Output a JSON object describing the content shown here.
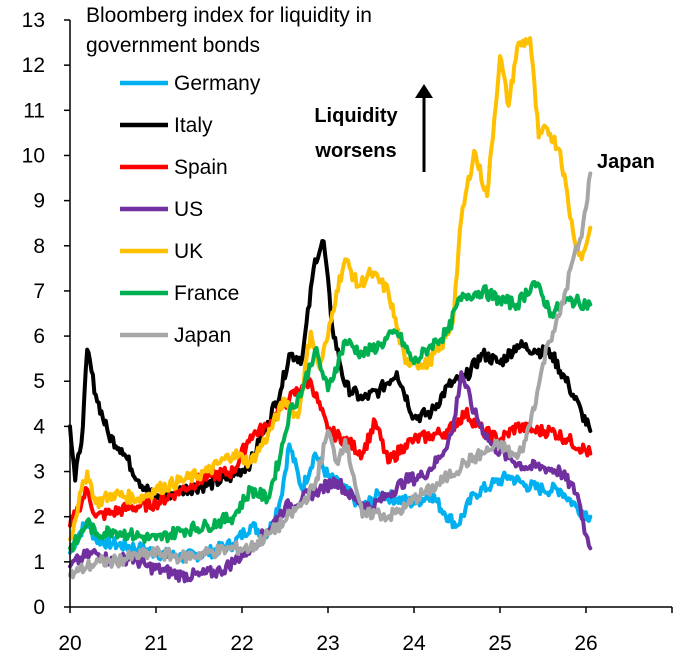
{
  "chart_data": {
    "type": "line",
    "title": "Bloomberg index for liquidity in government bonds",
    "title_lines": [
      "Bloomberg index for liquidity in",
      "government bonds"
    ],
    "xlabel": "",
    "ylabel": "",
    "xlim": [
      20,
      27
    ],
    "ylim": [
      0,
      13
    ],
    "x_ticks": [
      20,
      21,
      22,
      23,
      24,
      25,
      26
    ],
    "x_tick_labels": [
      "20",
      "21",
      "22",
      "23",
      "24",
      "25",
      "26"
    ],
    "y_ticks": [
      0,
      1,
      2,
      3,
      4,
      5,
      6,
      7,
      8,
      9,
      10,
      11,
      12,
      13
    ],
    "y_tick_labels": [
      "0",
      "1",
      "2",
      "3",
      "4",
      "5",
      "6",
      "7",
      "8",
      "9",
      "10",
      "11",
      "12",
      "13"
    ],
    "annotation": {
      "line1": "Liquidity",
      "line2": "worsens"
    },
    "end_label": {
      "text": "Japan",
      "color": "#a6a6a6"
    },
    "series": [
      {
        "name": "Germany",
        "color": "#00b0f0",
        "x": [
          20.0,
          20.1,
          20.2,
          20.3,
          20.5,
          20.8,
          21.0,
          21.3,
          21.6,
          21.9,
          22.1,
          22.3,
          22.45,
          22.55,
          22.7,
          22.85,
          23.0,
          23.2,
          23.4,
          23.6,
          23.8,
          24.0,
          24.2,
          24.35,
          24.5,
          24.7,
          24.9,
          25.1,
          25.3,
          25.5,
          25.7,
          25.9,
          26.05
        ],
        "values": [
          1.2,
          1.6,
          1.9,
          1.5,
          1.4,
          1.3,
          1.2,
          1.1,
          1.2,
          1.4,
          1.8,
          1.6,
          2.4,
          3.6,
          2.6,
          3.4,
          2.9,
          2.6,
          2.2,
          2.5,
          2.4,
          2.3,
          2.5,
          2.1,
          1.8,
          2.5,
          2.7,
          2.9,
          2.7,
          2.6,
          2.6,
          2.2,
          2.0
        ]
      },
      {
        "name": "Italy",
        "color": "#000000",
        "x": [
          20.0,
          20.06,
          20.15,
          20.2,
          20.3,
          20.45,
          20.6,
          20.8,
          21.0,
          21.3,
          21.6,
          21.9,
          22.1,
          22.3,
          22.45,
          22.55,
          22.7,
          22.85,
          22.95,
          23.05,
          23.2,
          23.4,
          23.6,
          23.8,
          24.0,
          24.2,
          24.4,
          24.6,
          24.8,
          25.0,
          25.2,
          25.4,
          25.6,
          25.8,
          25.95,
          26.05
        ],
        "values": [
          4.0,
          2.8,
          4.0,
          5.7,
          4.7,
          3.8,
          3.5,
          2.8,
          2.4,
          2.6,
          2.7,
          2.9,
          3.2,
          4.1,
          4.8,
          5.6,
          5.5,
          7.7,
          8.1,
          6.2,
          4.9,
          4.6,
          4.8,
          5.2,
          4.2,
          4.3,
          4.9,
          5.1,
          5.6,
          5.4,
          5.8,
          5.7,
          5.6,
          4.9,
          4.3,
          3.9
        ]
      },
      {
        "name": "Spain",
        "color": "#ff0000",
        "x": [
          20.0,
          20.1,
          20.2,
          20.3,
          20.5,
          20.7,
          21.0,
          21.3,
          21.6,
          21.9,
          22.1,
          22.3,
          22.45,
          22.55,
          22.7,
          22.8,
          23.0,
          23.2,
          23.4,
          23.55,
          23.7,
          23.9,
          24.0,
          24.2,
          24.4,
          24.6,
          24.8,
          25.0,
          25.2,
          25.4,
          25.6,
          25.8,
          26.05
        ],
        "values": [
          1.8,
          2.2,
          2.6,
          2.0,
          2.1,
          2.2,
          2.3,
          2.6,
          2.9,
          3.0,
          3.8,
          4.0,
          4.4,
          4.6,
          4.9,
          5.0,
          3.9,
          3.7,
          3.4,
          4.1,
          3.2,
          3.6,
          3.7,
          3.8,
          3.9,
          4.3,
          3.9,
          3.7,
          4.0,
          3.9,
          3.9,
          3.7,
          3.4
        ]
      },
      {
        "name": "US",
        "color": "#7030a0",
        "x": [
          20.0,
          20.15,
          20.3,
          20.5,
          20.7,
          20.9,
          21.1,
          21.3,
          21.5,
          21.75,
          21.9,
          22.1,
          22.3,
          22.5,
          22.7,
          22.9,
          23.1,
          23.3,
          23.5,
          23.7,
          23.9,
          24.1,
          24.3,
          24.45,
          24.55,
          24.7,
          24.9,
          25.1,
          25.3,
          25.5,
          25.7,
          25.9,
          26.0,
          26.05
        ],
        "values": [
          0.9,
          1.1,
          1.2,
          1.0,
          1.1,
          0.9,
          0.8,
          0.7,
          0.7,
          0.8,
          1.0,
          1.3,
          1.7,
          2.2,
          2.4,
          2.6,
          2.8,
          2.4,
          2.2,
          2.5,
          2.8,
          2.9,
          3.3,
          3.9,
          5.2,
          4.3,
          3.6,
          3.3,
          3.1,
          3.1,
          3.0,
          2.5,
          1.6,
          1.3
        ]
      },
      {
        "name": "UK",
        "color": "#ffc000",
        "x": [
          20.0,
          20.1,
          20.2,
          20.3,
          20.5,
          20.8,
          21.0,
          21.3,
          21.6,
          21.9,
          22.1,
          22.3,
          22.5,
          22.65,
          22.8,
          22.9,
          23.0,
          23.1,
          23.2,
          23.35,
          23.5,
          23.7,
          23.9,
          24.0,
          24.1,
          24.3,
          24.45,
          24.55,
          24.7,
          24.85,
          25.0,
          25.1,
          25.2,
          25.35,
          25.45,
          25.55,
          25.7,
          25.85,
          25.95,
          26.05
        ],
        "values": [
          1.5,
          2.3,
          3.0,
          2.3,
          2.5,
          2.4,
          2.6,
          2.8,
          3.0,
          3.4,
          3.2,
          3.8,
          4.6,
          4.2,
          6.1,
          5.3,
          6.0,
          7.0,
          7.7,
          7.1,
          7.4,
          7.0,
          5.4,
          5.5,
          5.3,
          5.7,
          6.3,
          8.6,
          10.1,
          9.1,
          12.2,
          11.1,
          12.4,
          12.6,
          10.4,
          10.6,
          10.1,
          8.3,
          7.7,
          8.4
        ]
      },
      {
        "name": "France",
        "color": "#00b050",
        "x": [
          20.0,
          20.1,
          20.2,
          20.3,
          20.5,
          20.7,
          21.0,
          21.3,
          21.6,
          21.9,
          22.1,
          22.3,
          22.45,
          22.55,
          22.7,
          22.85,
          23.0,
          23.2,
          23.4,
          23.6,
          23.8,
          24.0,
          24.2,
          24.4,
          24.5,
          24.6,
          24.8,
          25.0,
          25.2,
          25.4,
          25.6,
          25.8,
          26.05
        ],
        "values": [
          1.3,
          1.5,
          1.9,
          1.6,
          1.7,
          1.6,
          1.5,
          1.7,
          1.8,
          2.0,
          2.6,
          2.4,
          3.4,
          4.3,
          4.8,
          5.7,
          4.8,
          5.9,
          5.6,
          5.8,
          6.1,
          5.4,
          5.8,
          6.1,
          6.7,
          6.9,
          7.0,
          6.8,
          6.7,
          7.2,
          6.5,
          6.8,
          6.7
        ]
      },
      {
        "name": "Japan",
        "color": "#a6a6a6",
        "x": [
          20.0,
          20.1,
          20.2,
          20.35,
          20.5,
          20.7,
          21.0,
          21.3,
          21.6,
          21.9,
          22.1,
          22.3,
          22.5,
          22.7,
          22.85,
          23.0,
          23.1,
          23.2,
          23.3,
          23.4,
          23.55,
          23.7,
          23.9,
          24.0,
          24.2,
          24.4,
          24.6,
          24.8,
          25.0,
          25.2,
          25.3,
          25.45,
          25.55,
          25.7,
          25.85,
          25.95,
          26.05
        ],
        "values": [
          0.7,
          0.8,
          0.9,
          1.0,
          1.0,
          1.1,
          1.2,
          1.1,
          1.2,
          1.3,
          1.3,
          1.6,
          1.9,
          2.3,
          2.7,
          3.9,
          3.2,
          3.7,
          2.9,
          2.0,
          2.1,
          2.0,
          2.2,
          2.4,
          2.6,
          2.9,
          3.2,
          3.4,
          3.6,
          3.3,
          3.7,
          4.9,
          5.8,
          6.5,
          7.7,
          8.2,
          9.6
        ]
      }
    ]
  }
}
